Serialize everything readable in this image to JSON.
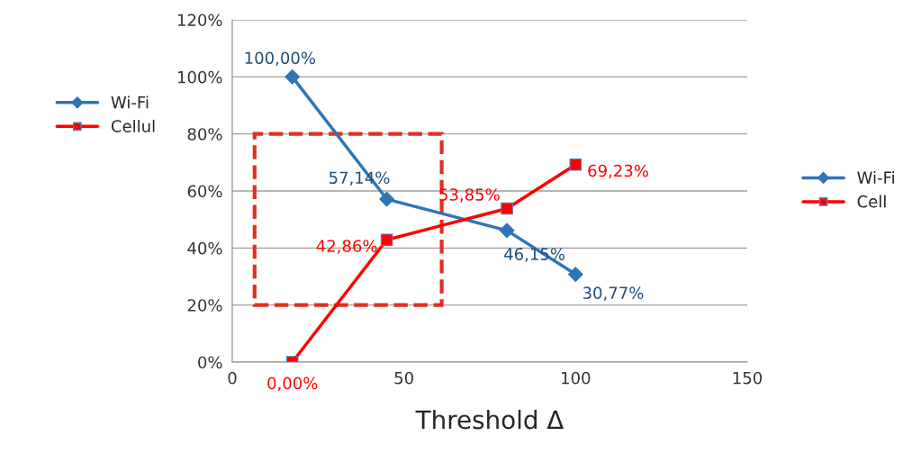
{
  "chart_data": {
    "type": "line",
    "xlabel": "Threshold Δ",
    "x": [
      17.5,
      45,
      80,
      100
    ],
    "series": [
      {
        "name": "Wi-Fi",
        "color": "#2e75b6",
        "marker": "diamond",
        "values": [
          100,
          57.14,
          46.15,
          30.77
        ],
        "value_labels": [
          "100,00%",
          "57,14%",
          "46,15%",
          "30,77%"
        ]
      },
      {
        "name": "Cell",
        "color": "#ff0000",
        "marker": "square",
        "values": [
          0,
          42.86,
          53.85,
          69.23
        ],
        "value_labels": [
          "0,00%",
          "42,86%",
          "53,85%",
          "69,23%"
        ]
      }
    ],
    "xlim": [
      0,
      150
    ],
    "xticks": [
      0,
      50,
      100,
      150
    ],
    "ylim": [
      0,
      120
    ],
    "yticks": [
      {
        "value": 0,
        "label": "0%"
      },
      {
        "value": 20,
        "label": "20%"
      },
      {
        "value": 40,
        "label": "40%"
      },
      {
        "value": 60,
        "label": "60%"
      },
      {
        "value": 80,
        "label": "80%"
      },
      {
        "value": 100,
        "label": "100%"
      },
      {
        "value": 120,
        "label": "120%"
      }
    ],
    "annotations": [
      "Wi-Fi",
      "Cellul"
    ],
    "grid": "y",
    "legend": "right"
  }
}
